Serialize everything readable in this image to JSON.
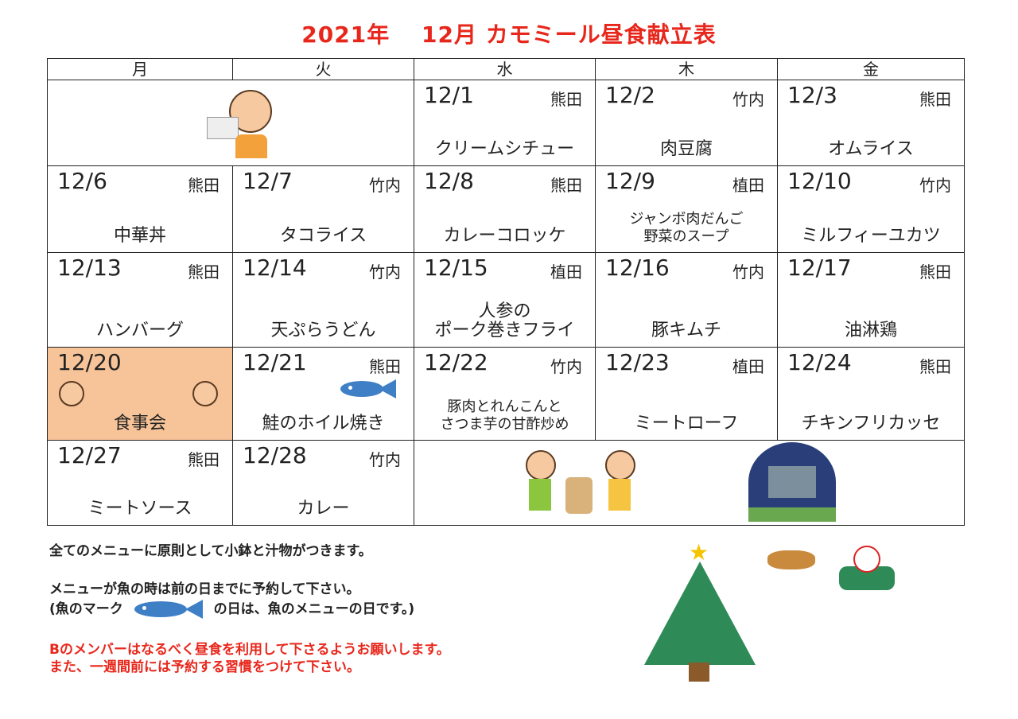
{
  "title": "2021年　 12月 カモミール昼食献立表",
  "weekdays": [
    "月",
    "火",
    "水",
    "木",
    "金"
  ],
  "rows": [
    [
      null,
      null,
      {
        "date": "12/1",
        "staff": "熊田",
        "menu": "クリームシチュー"
      },
      {
        "date": "12/2",
        "staff": "竹内",
        "menu": "肉豆腐"
      },
      {
        "date": "12/3",
        "staff": "熊田",
        "menu": "オムライス"
      }
    ],
    [
      {
        "date": "12/6",
        "staff": "熊田",
        "menu": "中華丼"
      },
      {
        "date": "12/7",
        "staff": "竹内",
        "menu": "タコライス"
      },
      {
        "date": "12/8",
        "staff": "熊田",
        "menu": "カレーコロッケ"
      },
      {
        "date": "12/9",
        "staff": "植田",
        "menu": "ジャンボ肉だんご\n野菜のスープ"
      },
      {
        "date": "12/10",
        "staff": "竹内",
        "menu": "ミルフィーユカツ"
      }
    ],
    [
      {
        "date": "12/13",
        "staff": "熊田",
        "menu": "ハンバーグ"
      },
      {
        "date": "12/14",
        "staff": "竹内",
        "menu": "天ぷらうどん"
      },
      {
        "date": "12/15",
        "staff": "植田",
        "menu": "人参の\nポーク巻きフライ"
      },
      {
        "date": "12/16",
        "staff": "竹内",
        "menu": "豚キムチ"
      },
      {
        "date": "12/17",
        "staff": "熊田",
        "menu": "油淋鶏"
      }
    ],
    [
      {
        "date": "12/20",
        "staff": "",
        "menu": "食事会",
        "highlight": "#f7c49a"
      },
      {
        "date": "12/21",
        "staff": "熊田",
        "menu": "鮭のホイル焼き",
        "fish": true
      },
      {
        "date": "12/22",
        "staff": "竹内",
        "menu": "豚肉とれんこんと\nさつま芋の甘酢炒め"
      },
      {
        "date": "12/23",
        "staff": "植田",
        "menu": "ミートローフ"
      },
      {
        "date": "12/24",
        "staff": "熊田",
        "menu": "チキンフリカッセ"
      }
    ],
    [
      {
        "date": "12/27",
        "staff": "熊田",
        "menu": "ミートソース"
      },
      {
        "date": "12/28",
        "staff": "竹内",
        "menu": "カレー"
      },
      null,
      null,
      null
    ]
  ],
  "notes": {
    "line1": "全てのメニューに原則として小鉢と汁物がつきます。",
    "line2": "メニューが魚の時は前の日までに予約して下さい。",
    "line3a": "(魚のマーク",
    "line3b": "の日は、魚のメニューの日です。)",
    "line4": "Bのメンバーはなるべく昼食を利用して下さるようお願いします。",
    "line5": "また、一週間前には予約する習慣をつけて下さい。"
  },
  "colors": {
    "title": "#e8271c",
    "fish": "#3f7fc6",
    "highlight": "#f7c49a",
    "tree": "#2e8b57"
  }
}
